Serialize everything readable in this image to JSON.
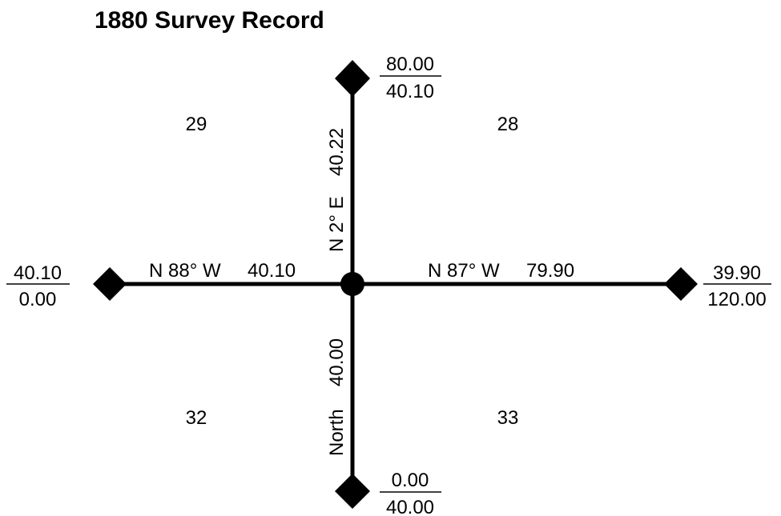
{
  "title": "1880 Survey Record",
  "sections": {
    "nw": "29",
    "ne": "28",
    "sw": "32",
    "se": "33"
  },
  "lines": {
    "north": {
      "bearing": "N 2° E",
      "distance": "40.22"
    },
    "south": {
      "bearing": "North",
      "distance": "40.00"
    },
    "west": {
      "bearing": "N 88° W",
      "distance": "40.10"
    },
    "east": {
      "bearing": "N 87° W",
      "distance": "79.90"
    }
  },
  "corners": {
    "north": {
      "top": "80.00",
      "bottom": "40.10"
    },
    "south": {
      "top": "0.00",
      "bottom": "40.00"
    },
    "west": {
      "top": "40.10",
      "bottom": "0.00"
    },
    "east": {
      "top": "39.90",
      "bottom": "120.00"
    }
  },
  "colors": {
    "ink": "#000000",
    "background": "#ffffff"
  }
}
